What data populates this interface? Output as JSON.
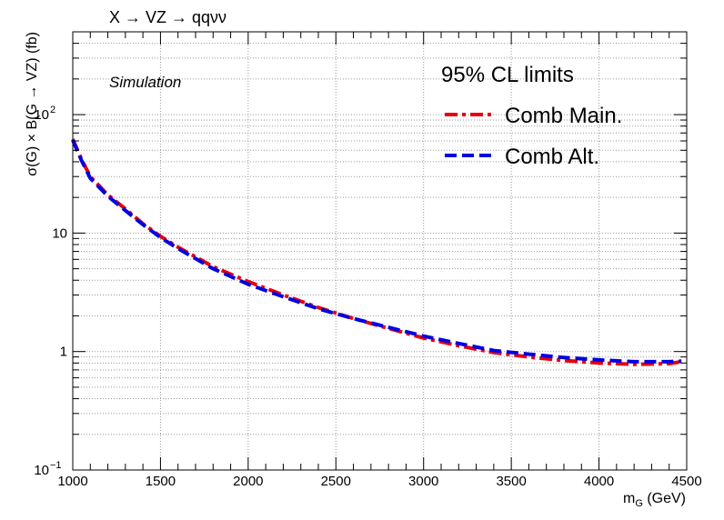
{
  "chart_data": {
    "type": "line",
    "title": "X → VZ → qqνν",
    "annotation": "Simulation",
    "xlabel": "m_G (GeV)",
    "xlabel_main": "m",
    "xlabel_sub": "G",
    "xlabel_unit": " (GeV)",
    "ylabel": "σ(G) × B(G → VZ) (fb)",
    "xlim": [
      1000,
      4500
    ],
    "ylim": [
      0.1,
      500
    ],
    "yscale": "log",
    "grid": true,
    "legend_position": "top-right",
    "legend_title": "95% CL limits",
    "x_ticks": [
      "1000",
      "1500",
      "2000",
      "2500",
      "3000",
      "3500",
      "4000",
      "4500"
    ],
    "y_ticks": [
      {
        "value": 0.1,
        "base": "10",
        "exp": "−1"
      },
      {
        "value": 1,
        "base": "1",
        "exp": ""
      },
      {
        "value": 10,
        "base": "10",
        "exp": ""
      },
      {
        "value": 100,
        "base": "10",
        "exp": "2"
      }
    ],
    "x": [
      1000,
      1050,
      1100,
      1200,
      1300,
      1400,
      1500,
      1600,
      1700,
      1800,
      1900,
      2000,
      2200,
      2400,
      2600,
      2800,
      3000,
      3200,
      3400,
      3600,
      3800,
      4000,
      4200,
      4400,
      4470
    ],
    "series": [
      {
        "name": "Comb Main.",
        "color": "#e8000b",
        "values": [
          62,
          42,
          30,
          21,
          16,
          12,
          9.4,
          7.6,
          6.3,
          5.2,
          4.5,
          3.9,
          3.0,
          2.35,
          1.9,
          1.57,
          1.3,
          1.12,
          0.98,
          0.9,
          0.84,
          0.8,
          0.78,
          0.79,
          0.82
        ]
      },
      {
        "name": "Comb Alt.",
        "color": "#0000e0",
        "values": [
          61,
          41,
          29,
          20.5,
          15.5,
          11.8,
          9.2,
          7.4,
          6.1,
          5.0,
          4.3,
          3.7,
          2.9,
          2.3,
          1.9,
          1.6,
          1.35,
          1.17,
          1.02,
          0.95,
          0.89,
          0.85,
          0.82,
          0.82,
          0.83
        ]
      }
    ]
  }
}
